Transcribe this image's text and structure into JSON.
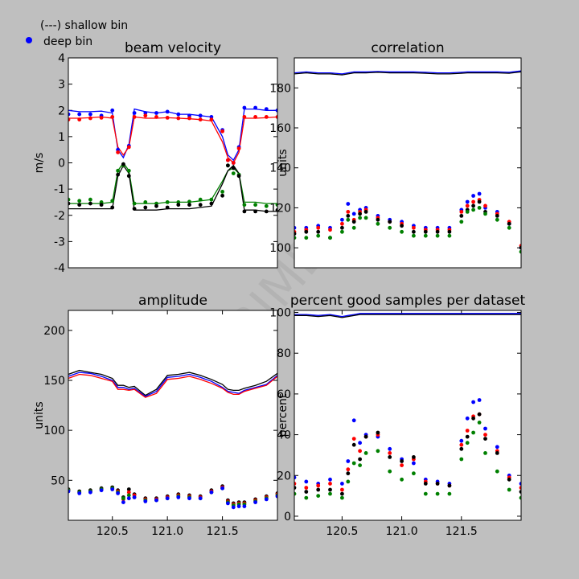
{
  "legend": {
    "line_entry": "(---) shallow bin",
    "dot_entry": "deep bin",
    "dot_color": "#0000ff"
  },
  "watermark": "EXPERIMENTAL",
  "colors": {
    "blue": "#0000ff",
    "red": "#ff0000",
    "green": "#008000",
    "black": "#000000"
  },
  "chart_data": [
    {
      "id": "vel",
      "type": "line",
      "title": "beam velocity",
      "xlabel": "",
      "ylabel": "m/s",
      "xlim": [
        120.1,
        122.0
      ],
      "ylim": [
        -4,
        4
      ],
      "xticks": [],
      "yticks": [
        -4,
        -3,
        -2,
        -1,
        0,
        1,
        2,
        3,
        4
      ],
      "x": [
        120.1,
        120.2,
        120.3,
        120.4,
        120.5,
        120.55,
        120.6,
        120.65,
        120.7,
        120.8,
        120.9,
        121.0,
        121.1,
        121.2,
        121.3,
        121.4,
        121.5,
        121.55,
        121.6,
        121.65,
        121.7,
        121.8,
        121.9,
        122.0
      ],
      "series": [
        {
          "color": "blue",
          "kind": "line",
          "values": [
            2.0,
            1.95,
            1.95,
            1.97,
            1.9,
            0.5,
            0.2,
            0.7,
            2.05,
            1.95,
            1.9,
            1.95,
            1.85,
            1.85,
            1.8,
            1.75,
            1.0,
            0.3,
            0.1,
            0.5,
            2.05,
            2.05,
            2.0,
            2.0
          ]
        },
        {
          "color": "red",
          "kind": "line",
          "values": [
            1.7,
            1.7,
            1.72,
            1.75,
            1.7,
            0.6,
            0.3,
            0.6,
            1.75,
            1.7,
            1.7,
            1.72,
            1.7,
            1.68,
            1.65,
            1.6,
            0.8,
            0.2,
            0.0,
            0.4,
            1.7,
            1.7,
            1.72,
            1.75
          ]
        },
        {
          "color": "green",
          "kind": "line",
          "values": [
            -1.55,
            -1.55,
            -1.55,
            -1.55,
            -1.5,
            -0.3,
            0.0,
            -0.3,
            -1.55,
            -1.55,
            -1.55,
            -1.5,
            -1.5,
            -1.5,
            -1.45,
            -1.4,
            -0.7,
            -0.3,
            -0.2,
            -0.4,
            -1.5,
            -1.5,
            -1.55,
            -1.55
          ]
        },
        {
          "color": "black",
          "kind": "line",
          "values": [
            -1.75,
            -1.75,
            -1.75,
            -1.75,
            -1.75,
            -0.5,
            -0.1,
            -0.4,
            -1.8,
            -1.8,
            -1.8,
            -1.75,
            -1.75,
            -1.75,
            -1.7,
            -1.65,
            -0.8,
            -0.3,
            -0.1,
            -0.4,
            -1.8,
            -1.8,
            -1.85,
            -1.85
          ]
        },
        {
          "color": "blue",
          "kind": "dots",
          "values": [
            1.85,
            1.85,
            1.85,
            1.8,
            2.0,
            0.5,
            -0.1,
            0.65,
            1.9,
            1.9,
            1.9,
            1.95,
            1.85,
            1.8,
            1.8,
            1.75,
            1.25,
            0.1,
            0.0,
            0.6,
            2.1,
            2.1,
            2.05,
            2.0
          ]
        },
        {
          "color": "red",
          "kind": "dots",
          "values": [
            1.65,
            1.65,
            1.7,
            1.72,
            1.75,
            0.4,
            -0.1,
            0.6,
            1.75,
            1.8,
            1.75,
            1.72,
            1.7,
            1.7,
            1.65,
            1.65,
            1.2,
            0.1,
            0.0,
            0.55,
            1.75,
            1.75,
            1.75,
            1.75
          ]
        },
        {
          "color": "green",
          "kind": "dots",
          "values": [
            -1.4,
            -1.45,
            -1.4,
            -1.5,
            -1.45,
            -0.3,
            -0.1,
            -0.3,
            -1.55,
            -1.5,
            -1.55,
            -1.5,
            -1.5,
            -1.48,
            -1.4,
            -1.4,
            -1.1,
            -0.1,
            -0.4,
            -0.45,
            -1.6,
            -1.6,
            -1.65,
            -1.6
          ]
        },
        {
          "color": "black",
          "kind": "dots",
          "values": [
            -1.55,
            -1.6,
            -1.55,
            -1.6,
            -1.7,
            -0.45,
            -0.05,
            -0.5,
            -1.75,
            -1.7,
            -1.65,
            -1.7,
            -1.6,
            -1.6,
            -1.6,
            -1.55,
            -1.25,
            -0.1,
            -0.2,
            -0.5,
            -1.85,
            -1.85,
            -1.85,
            -1.8
          ]
        }
      ]
    },
    {
      "id": "cor",
      "type": "line",
      "title": "correlation",
      "xlabel": "",
      "ylabel": "units",
      "xlim": [
        120.1,
        122.0
      ],
      "ylim": [
        90,
        195
      ],
      "xticks": [],
      "yticks": [
        100,
        120,
        140,
        160,
        180
      ],
      "x": [
        120.1,
        120.2,
        120.3,
        120.4,
        120.5,
        120.55,
        120.6,
        120.65,
        120.7,
        120.8,
        120.9,
        121.0,
        121.1,
        121.2,
        121.3,
        121.4,
        121.5,
        121.55,
        121.6,
        121.65,
        121.7,
        121.8,
        121.9,
        122.0
      ],
      "series": [
        {
          "color": "blue",
          "kind": "line",
          "values": [
            187.5,
            188,
            187.5,
            187.5,
            187,
            187.5,
            188,
            188,
            188,
            188.2,
            188,
            188,
            188,
            187.8,
            187.5,
            187.5,
            187.8,
            188,
            188,
            188,
            188,
            188,
            187.8,
            188.5
          ]
        },
        {
          "color": "black",
          "kind": "line",
          "values": [
            187,
            187.5,
            187,
            187,
            186.5,
            187,
            187.5,
            187.5,
            187.5,
            187.8,
            187.5,
            187.5,
            187.5,
            187.3,
            187,
            187,
            187.3,
            187.5,
            187.5,
            187.5,
            187.5,
            187.5,
            187.3,
            188
          ]
        },
        {
          "color": "blue",
          "kind": "dots",
          "values": [
            110,
            110,
            111,
            110,
            114,
            122,
            117,
            119,
            120,
            116,
            114,
            113,
            111,
            110,
            110,
            110,
            119,
            123,
            126,
            127,
            120,
            118,
            112,
            100
          ]
        },
        {
          "color": "red",
          "kind": "dots",
          "values": [
            108,
            109,
            110,
            109,
            112,
            118,
            114,
            118,
            119,
            115,
            113,
            112,
            110,
            109,
            109,
            109,
            118,
            121,
            123,
            124,
            121,
            117,
            113,
            101
          ]
        },
        {
          "color": "black",
          "kind": "dots",
          "values": [
            107,
            108,
            108,
            105,
            110,
            116,
            113,
            117,
            118,
            114,
            113,
            111,
            108,
            108,
            108,
            108,
            116,
            119,
            121,
            123,
            118,
            116,
            112,
            100
          ]
        },
        {
          "color": "green",
          "kind": "dots",
          "values": [
            105,
            105,
            106,
            105,
            108,
            114,
            110,
            115,
            115,
            112,
            110,
            108,
            106,
            106,
            106,
            106,
            113,
            118,
            119,
            120,
            117,
            114,
            110,
            98
          ]
        }
      ]
    },
    {
      "id": "amp",
      "type": "line",
      "title": "amplitude",
      "xlabel": "",
      "ylabel": "units",
      "xlim": [
        120.1,
        122.0
      ],
      "ylim": [
        10,
        220
      ],
      "xticks": [
        120.5,
        121.0,
        121.5
      ],
      "yticks": [
        50,
        100,
        150,
        200
      ],
      "x": [
        120.1,
        120.2,
        120.3,
        120.4,
        120.5,
        120.55,
        120.6,
        120.65,
        120.7,
        120.8,
        120.9,
        121.0,
        121.1,
        121.2,
        121.3,
        121.4,
        121.5,
        121.55,
        121.6,
        121.65,
        121.7,
        121.8,
        121.9,
        122.0
      ],
      "series": [
        {
          "color": "black",
          "kind": "line",
          "values": [
            156,
            160,
            158,
            156,
            152,
            145,
            145,
            143,
            144,
            135,
            141,
            155,
            156,
            158,
            155,
            151,
            146,
            141,
            140,
            140,
            142,
            145,
            149,
            157
          ]
        },
        {
          "color": "blue",
          "kind": "line",
          "values": [
            154,
            158,
            157,
            154,
            150,
            143,
            143,
            141,
            142,
            134,
            139,
            153,
            154,
            156,
            153,
            149,
            143,
            139,
            138,
            137,
            140,
            143,
            146,
            155
          ]
        },
        {
          "color": "red",
          "kind": "line",
          "values": [
            152,
            156,
            155,
            152,
            149,
            141,
            141,
            140,
            141,
            133,
            137,
            151,
            152,
            154,
            151,
            147,
            142,
            138,
            136,
            136,
            139,
            142,
            145,
            154
          ]
        },
        {
          "color": "black",
          "kind": "dots",
          "values": [
            41,
            39,
            40,
            42,
            43,
            40,
            33,
            41,
            36,
            32,
            32,
            34,
            36,
            35,
            34,
            40,
            44,
            30,
            27,
            28,
            28,
            31,
            34,
            37
          ]
        },
        {
          "color": "red",
          "kind": "dots",
          "values": [
            40,
            38,
            39,
            41,
            42,
            39,
            31,
            38,
            35,
            31,
            31,
            33,
            35,
            34,
            33,
            39,
            43,
            29,
            26,
            27,
            27,
            30,
            33,
            36
          ]
        },
        {
          "color": "green",
          "kind": "dots",
          "values": [
            40,
            38,
            39,
            41,
            42,
            38,
            32,
            35,
            33,
            30,
            30,
            32,
            34,
            33,
            32,
            38,
            42,
            28,
            25,
            26,
            26,
            29,
            32,
            35
          ]
        },
        {
          "color": "blue",
          "kind": "dots",
          "values": [
            39,
            37,
            38,
            40,
            41,
            37,
            28,
            32,
            33,
            29,
            30,
            32,
            33,
            32,
            32,
            38,
            42,
            27,
            23,
            24,
            24,
            28,
            31,
            34
          ]
        }
      ]
    },
    {
      "id": "pg",
      "type": "line",
      "title": "percent good samples per dataset",
      "xlabel": "",
      "ylabel": "percent",
      "xlim": [
        120.1,
        122.0
      ],
      "ylim": [
        -2,
        101
      ],
      "xticks": [
        120.5,
        121.0,
        121.5
      ],
      "yticks": [
        0,
        20,
        40,
        60,
        80,
        100
      ],
      "x": [
        120.1,
        120.2,
        120.3,
        120.4,
        120.5,
        120.55,
        120.6,
        120.65,
        120.7,
        120.8,
        120.9,
        121.0,
        121.1,
        121.2,
        121.3,
        121.4,
        121.5,
        121.55,
        121.6,
        121.65,
        121.7,
        121.8,
        121.9,
        122.0
      ],
      "series": [
        {
          "color": "blue",
          "kind": "line",
          "values": [
            99,
            99,
            98.5,
            99,
            98,
            98.5,
            99,
            99.5,
            99.5,
            99.5,
            99.5,
            99.5,
            99.5,
            99.5,
            99.5,
            99.5,
            99.5,
            99.5,
            99.5,
            99.5,
            99.5,
            99.5,
            99.5,
            99.5
          ]
        },
        {
          "color": "black",
          "kind": "line",
          "values": [
            98.5,
            98.5,
            98,
            98.5,
            97.5,
            98,
            98.5,
            99,
            99,
            99,
            99,
            99,
            99,
            99,
            99,
            99,
            99,
            99,
            99,
            99,
            99,
            99,
            99,
            99
          ]
        },
        {
          "color": "blue",
          "kind": "dots",
          "values": [
            19,
            17,
            16,
            18,
            16,
            27,
            47,
            36,
            40,
            39,
            33,
            28,
            26,
            18,
            17,
            16,
            37,
            48,
            56,
            57,
            43,
            34,
            20,
            16
          ]
        },
        {
          "color": "red",
          "kind": "dots",
          "values": [
            16,
            14,
            15,
            16,
            13,
            23,
            38,
            32,
            39,
            40,
            31,
            25,
            28,
            17,
            16,
            15,
            35,
            42,
            49,
            50,
            40,
            32,
            19,
            14
          ]
        },
        {
          "color": "black",
          "kind": "dots",
          "values": [
            14,
            12,
            13,
            13,
            11,
            21,
            35,
            28,
            39,
            41,
            29,
            27,
            29,
            16,
            16,
            15,
            33,
            39,
            48,
            50,
            38,
            31,
            18,
            12
          ]
        },
        {
          "color": "green",
          "kind": "dots",
          "values": [
            11,
            9,
            10,
            11,
            9,
            17,
            26,
            25,
            31,
            32,
            22,
            18,
            21,
            11,
            11,
            11,
            28,
            36,
            41,
            46,
            31,
            22,
            13,
            9
          ]
        }
      ]
    }
  ]
}
